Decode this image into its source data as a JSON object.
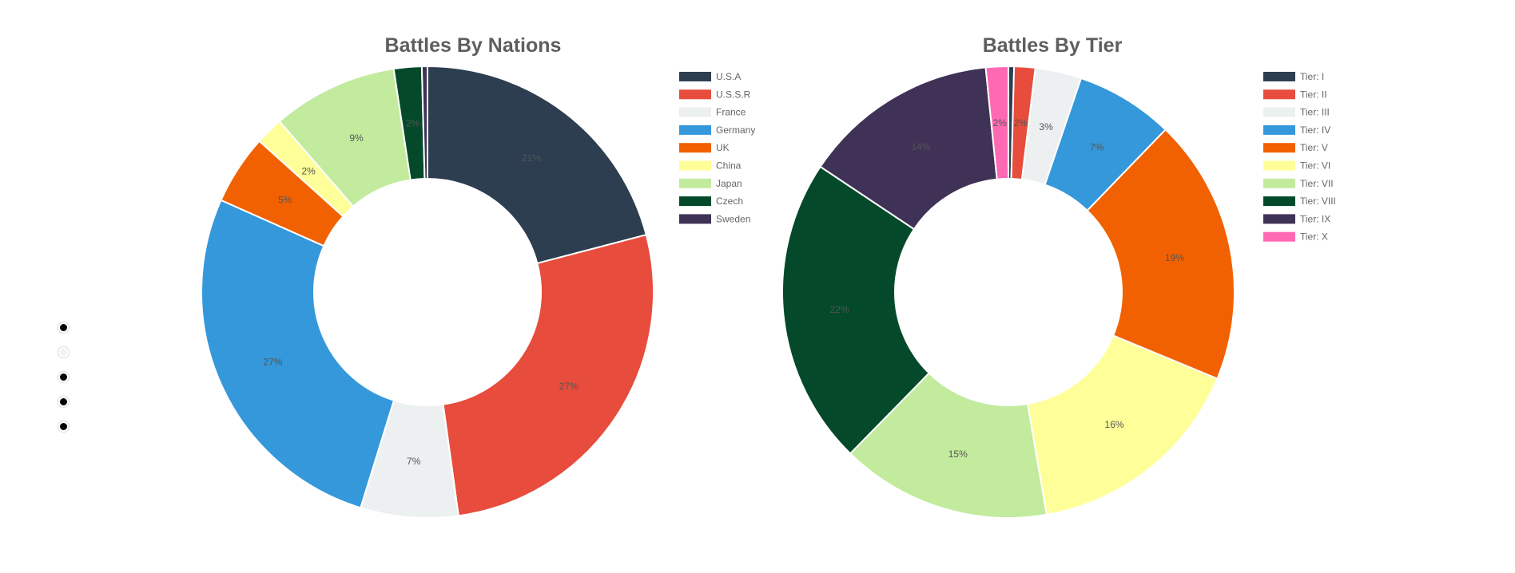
{
  "nav_dots": [
    {
      "active": false
    },
    {
      "active": true
    },
    {
      "active": false
    },
    {
      "active": false
    },
    {
      "active": false
    }
  ],
  "chart_data": [
    {
      "type": "pie",
      "donut": true,
      "title": "Battles By Nations",
      "legend_position": "top-right",
      "categories": [
        "U.S.A",
        "U.S.S.R",
        "France",
        "Germany",
        "UK",
        "China",
        "Japan",
        "Czech",
        "Sweden"
      ],
      "values": [
        21,
        27,
        7,
        27,
        5,
        2,
        9,
        2,
        0.4
      ],
      "labels": [
        "21%",
        "27%",
        "7%",
        "27%",
        "5%",
        "2%",
        "9%",
        "2%",
        ""
      ],
      "colors": [
        "#2d3e50",
        "#e74c3c",
        "#ecf0f1",
        "#3498db",
        "#f26101",
        "#ffff99",
        "#c2eb9e",
        "#044a2a",
        "#3f3256"
      ]
    },
    {
      "type": "pie",
      "donut": true,
      "title": "Battles By Tier",
      "legend_position": "top-right",
      "categories": [
        "Tier: I",
        "Tier: II",
        "Tier: III",
        "Tier: IV",
        "Tier: V",
        "Tier: VI",
        "Tier: VII",
        "Tier: VIII",
        "Tier: IX",
        "Tier: X"
      ],
      "values": [
        0.4,
        1.5,
        3.3,
        7,
        19,
        16,
        15,
        22,
        14,
        1.6
      ],
      "labels": [
        "",
        "2%",
        "3%",
        "7%",
        "19%",
        "16%",
        "15%",
        "22%",
        "14%",
        "2%"
      ],
      "colors": [
        "#2d3e50",
        "#e74c3c",
        "#ecf0f1",
        "#3498db",
        "#f26101",
        "#ffff99",
        "#c2eb9e",
        "#044a2a",
        "#3f3256",
        "#ff69b4"
      ]
    }
  ]
}
